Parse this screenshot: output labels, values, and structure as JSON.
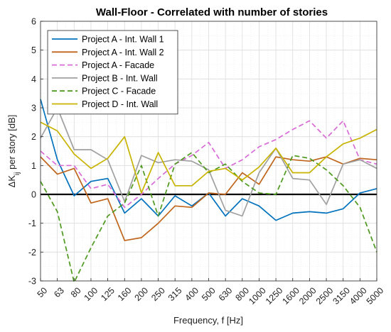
{
  "chart_data": {
    "type": "line",
    "title": "Wall-Floor - Correlated with number of stories",
    "xlabel": "Frequency, f [Hz]",
    "ylabel": "ΔK",
    "ylabel_sub": "ij",
    "ylabel_rest": " per story [dB]",
    "categories": [
      "50",
      "63",
      "80",
      "100",
      "125",
      "160",
      "200",
      "250",
      "315",
      "400",
      "500",
      "630",
      "800",
      "1000",
      "1250",
      "1600",
      "2000",
      "2500",
      "3150",
      "4000",
      "5000"
    ],
    "ylim": [
      -3,
      6
    ],
    "yticks": [
      "-3",
      "-2",
      "-1",
      "0",
      "1",
      "2",
      "3",
      "4",
      "5",
      "6"
    ],
    "grid": true,
    "legend_position": "top-left",
    "zero_line": true,
    "series": [
      {
        "name": "Project A - Int. Wall 1",
        "color": "#0072BD",
        "dash": "solid",
        "values": [
          3.3,
          1.2,
          -0.05,
          0.45,
          0.55,
          -0.65,
          -0.15,
          -0.75,
          -0.05,
          -0.4,
          0.05,
          -0.75,
          -0.15,
          -0.4,
          -0.9,
          -0.65,
          -0.6,
          -0.65,
          -0.5,
          0.05,
          0.2
        ]
      },
      {
        "name": "Project A - Int. Wall 2",
        "color": "#C0651C",
        "dash": "solid",
        "values": [
          1.3,
          0.7,
          0.9,
          -0.3,
          -0.15,
          -1.6,
          -1.5,
          -1.0,
          -0.4,
          -0.45,
          0.05,
          0.0,
          0.75,
          0.35,
          1.3,
          1.2,
          1.15,
          1.3,
          1.05,
          1.25,
          1.2
        ]
      },
      {
        "name": "Project A - Facade",
        "color": "#D96BD9",
        "dash": "dashed",
        "values": [
          1.5,
          1.0,
          1.0,
          0.2,
          0.35,
          -0.45,
          0.0,
          0.55,
          1.05,
          1.35,
          1.8,
          0.9,
          1.2,
          1.65,
          1.9,
          2.25,
          2.55,
          1.95,
          2.55,
          1.2,
          1.05
        ]
      },
      {
        "name": "Project B - Int. Wall",
        "color": "#A0A0A0",
        "dash": "solid",
        "values": [
          1.95,
          3.0,
          1.55,
          1.55,
          1.2,
          -0.25,
          1.35,
          1.1,
          1.2,
          1.15,
          0.85,
          -0.55,
          -0.75,
          0.75,
          1.6,
          0.55,
          0.5,
          -0.35,
          1.05,
          1.2,
          0.9
        ]
      },
      {
        "name": "Project C - Facade",
        "color": "#4E9A1F",
        "dash": "dashed",
        "values": [
          0.45,
          -0.6,
          -3.05,
          -1.85,
          -0.75,
          -0.3,
          1.0,
          -0.75,
          1.05,
          1.45,
          0.75,
          1.05,
          0.45,
          0.05,
          0.0,
          1.35,
          1.25,
          0.85,
          0.3,
          -0.45,
          -2.0
        ]
      },
      {
        "name": "Project D - Int. Wall",
        "color": "#C8B400",
        "dash": "solid",
        "values": [
          2.5,
          2.2,
          1.4,
          0.9,
          1.25,
          2.0,
          0.05,
          1.45,
          0.3,
          0.3,
          0.8,
          0.9,
          0.5,
          0.95,
          1.6,
          0.75,
          0.75,
          1.3,
          1.75,
          1.95,
          2.25
        ]
      }
    ]
  }
}
